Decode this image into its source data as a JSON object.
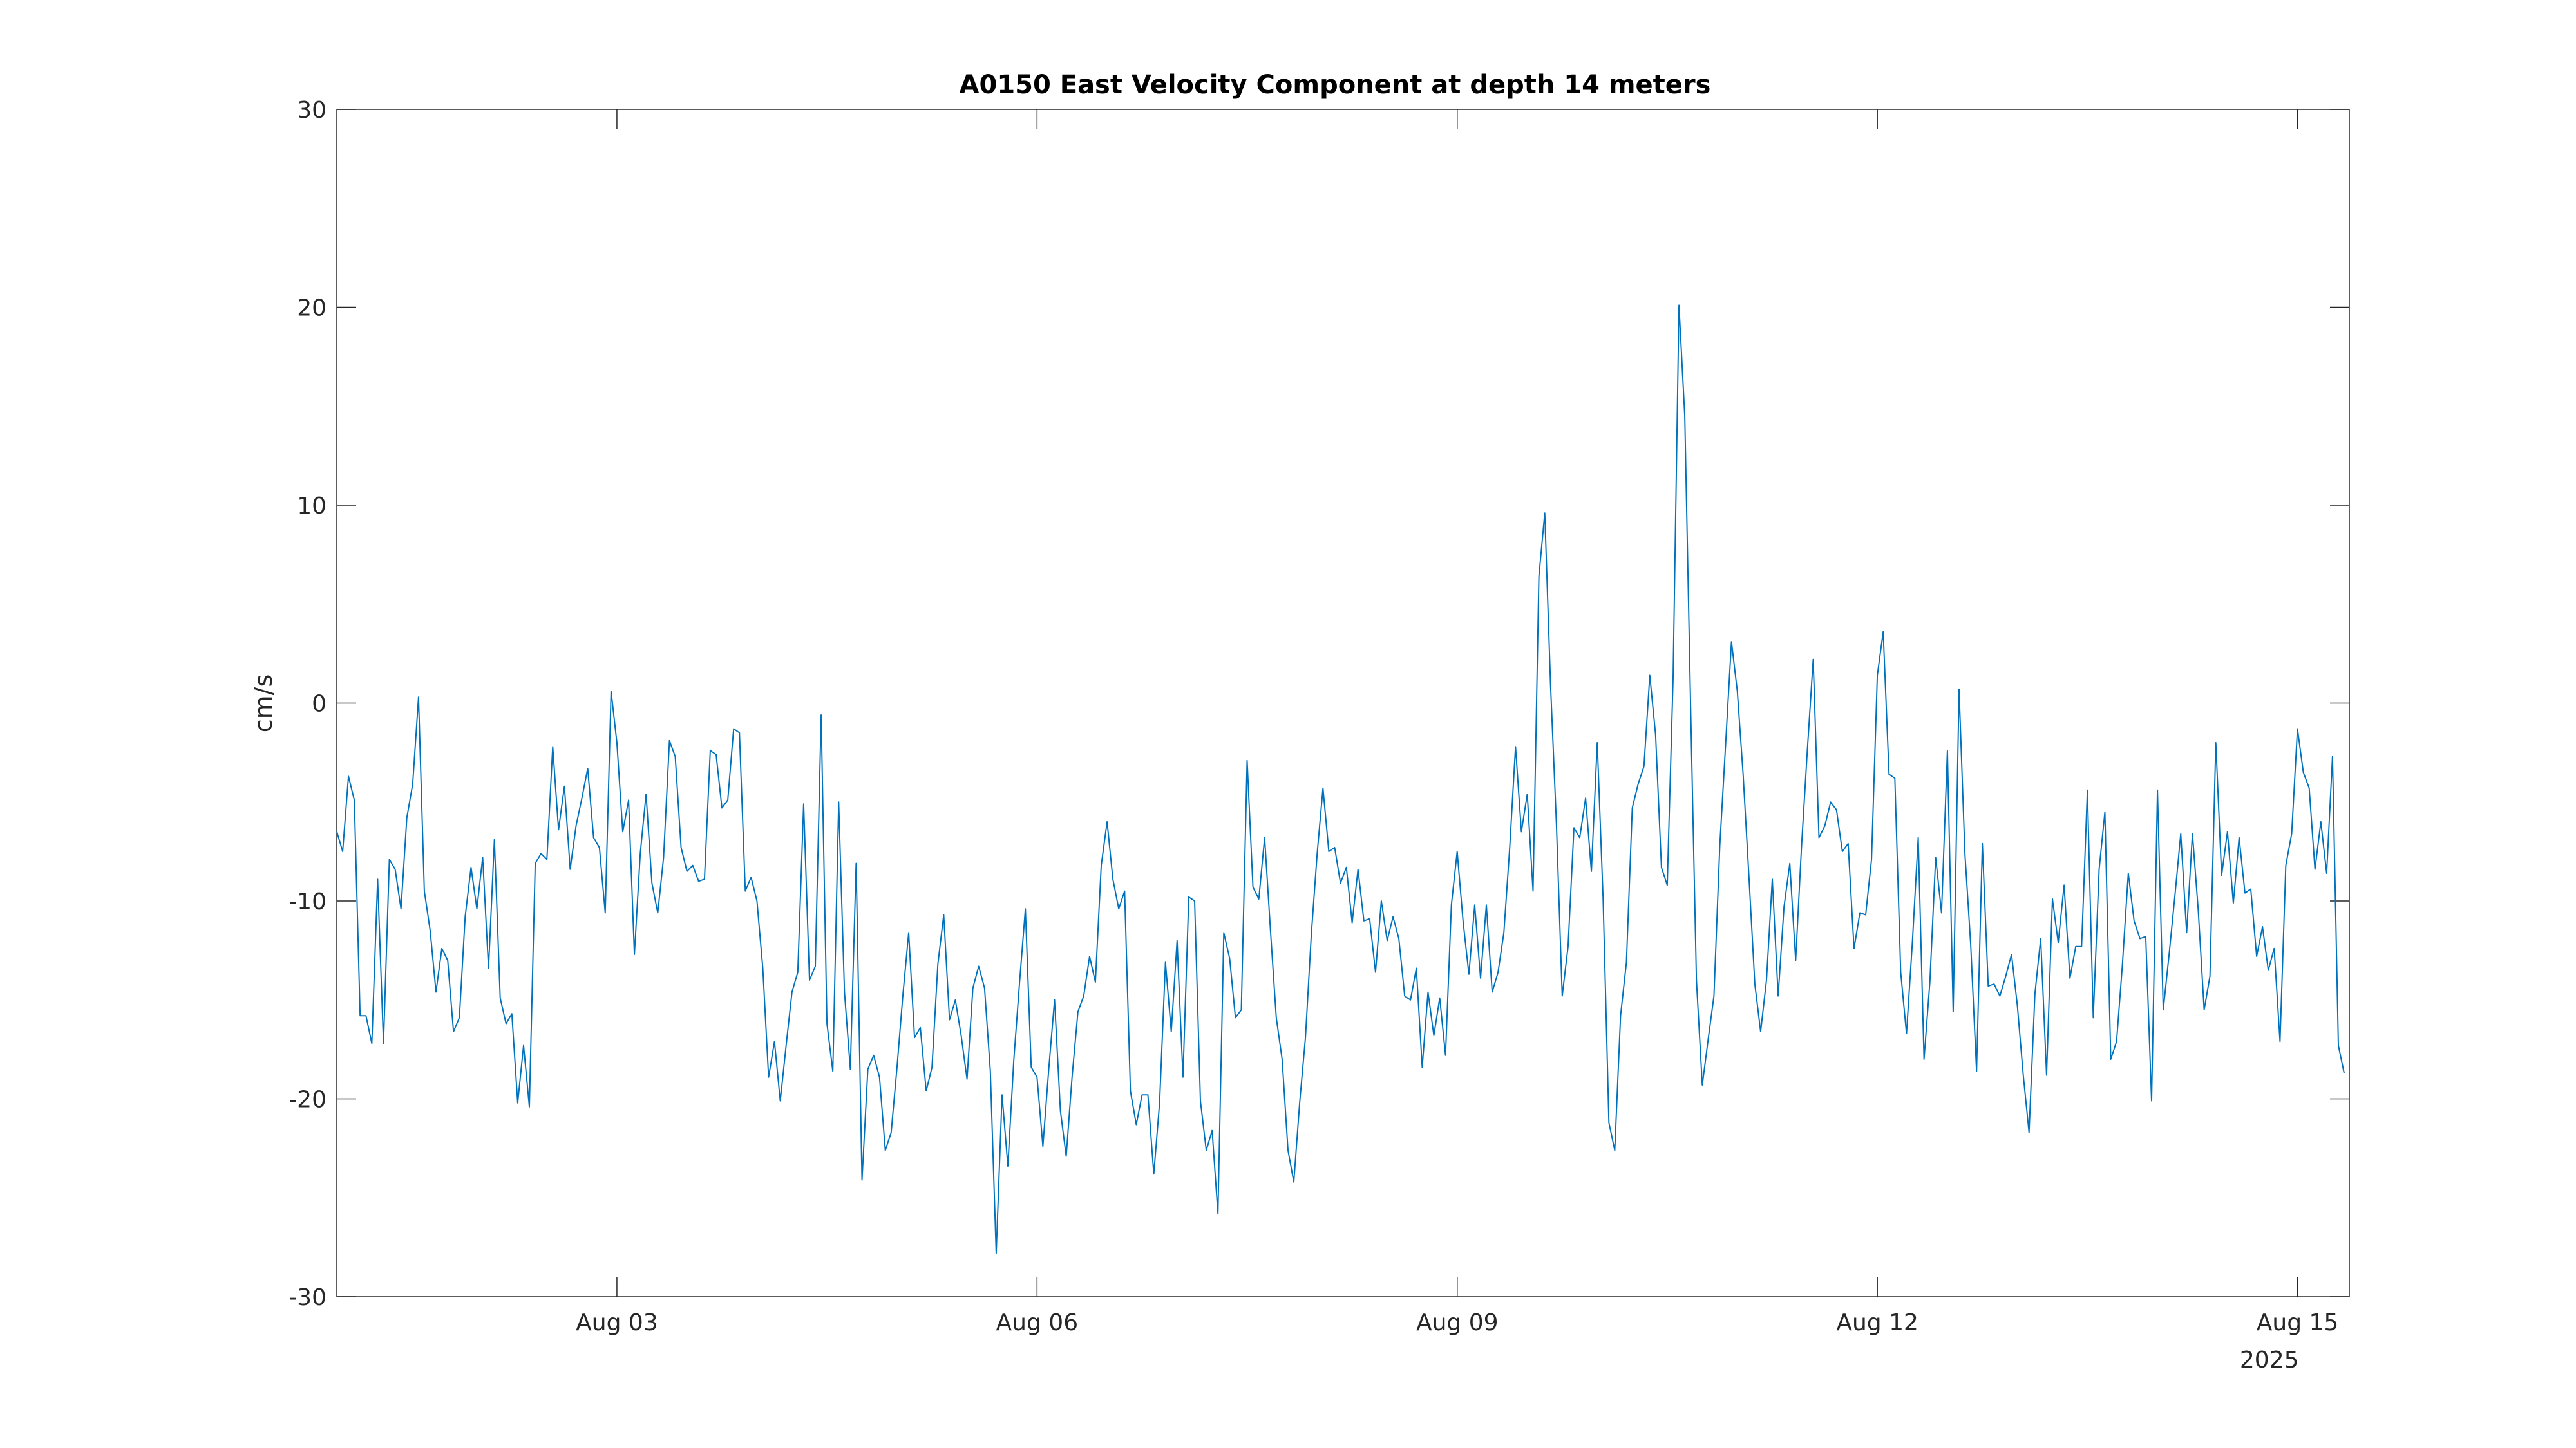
{
  "chart_data": {
    "type": "line",
    "title": "A0150 East Velocity Component at depth 14 meters",
    "xlabel": "",
    "ylabel": "cm/s",
    "ylim": [
      -30,
      30
    ],
    "yticks": [
      "30",
      "20",
      "10",
      "0",
      "-10",
      "-20",
      "-30"
    ],
    "xlim_days": [
      0,
      14.37
    ],
    "xticks": [
      {
        "label": "Aug 03",
        "day": 2.0
      },
      {
        "label": "Aug 06",
        "day": 5.0
      },
      {
        "label": "Aug 09",
        "day": 8.0
      },
      {
        "label": "Aug 12",
        "day": 11.0
      },
      {
        "label": "Aug 15",
        "day": 14.0
      }
    ],
    "x_secondary_label": "2025",
    "grid": false,
    "line_color": "#0072BD",
    "series": [
      {
        "interval_hours": 1,
        "values": [
          -6.5,
          -7.5,
          -3.7,
          -4.9,
          -15.8,
          -15.8,
          -17.2,
          -8.9,
          -17.2,
          -7.9,
          -8.4,
          -10.4,
          -5.8,
          -4.1,
          0.3,
          -9.5,
          -11.5,
          -14.6,
          -12.4,
          -13.0,
          -16.6,
          -15.9,
          -10.8,
          -8.3,
          -10.4,
          -7.8,
          -13.4,
          -6.9,
          -14.9,
          -16.2,
          -15.7,
          -20.2,
          -17.3,
          -20.4,
          -8.1,
          -7.6,
          -7.9,
          -2.2,
          -6.4,
          -4.2,
          -8.4,
          -6.2,
          -4.8,
          -3.3,
          -6.8,
          -7.3,
          -10.6,
          0.6,
          -2.0,
          -6.5,
          -4.9,
          -12.7,
          -7.6,
          -4.6,
          -9.1,
          -10.6,
          -7.8,
          -1.9,
          -2.7,
          -7.3,
          -8.5,
          -8.2,
          -9.0,
          -8.9,
          -2.4,
          -2.6,
          -5.3,
          -4.9,
          -1.3,
          -1.5,
          -9.5,
          -8.8,
          -10.0,
          -13.4,
          -18.9,
          -17.1,
          -20.1,
          -17.3,
          -14.6,
          -13.6,
          -5.1,
          -14.0,
          -13.3,
          -0.6,
          -16.2,
          -18.6,
          -5.0,
          -14.6,
          -18.5,
          -8.1,
          -24.1,
          -18.5,
          -17.8,
          -18.9,
          -22.6,
          -21.7,
          -18.4,
          -14.8,
          -11.6,
          -16.9,
          -16.4,
          -19.6,
          -18.4,
          -13.2,
          -10.7,
          -16.0,
          -15.0,
          -16.8,
          -19.0,
          -14.4,
          -13.3,
          -14.4,
          -18.6,
          -27.8,
          -19.8,
          -23.4,
          -18.1,
          -14.1,
          -10.4,
          -18.4,
          -18.9,
          -22.4,
          -18.5,
          -15.0,
          -20.6,
          -22.9,
          -18.9,
          -15.6,
          -14.8,
          -12.8,
          -14.1,
          -8.2,
          -6.0,
          -8.9,
          -10.4,
          -9.5,
          -19.6,
          -21.3,
          -19.8,
          -19.8,
          -23.8,
          -20.2,
          -13.1,
          -16.6,
          -12.0,
          -18.9,
          -9.8,
          -10.0,
          -20.1,
          -22.6,
          -21.6,
          -25.8,
          -11.6,
          -12.9,
          -15.9,
          -15.5,
          -2.9,
          -9.3,
          -9.9,
          -6.8,
          -11.5,
          -15.9,
          -18.0,
          -22.6,
          -24.2,
          -20.2,
          -16.9,
          -11.7,
          -7.6,
          -4.3,
          -7.5,
          -7.3,
          -9.1,
          -8.3,
          -11.1,
          -8.4,
          -11.0,
          -10.9,
          -13.6,
          -10.0,
          -12.0,
          -10.8,
          -11.9,
          -14.8,
          -15.0,
          -13.4,
          -18.4,
          -14.6,
          -16.8,
          -14.9,
          -17.8,
          -10.2,
          -7.5,
          -11.0,
          -13.7,
          -10.2,
          -13.9,
          -10.2,
          -14.6,
          -13.6,
          -11.6,
          -7.3,
          -2.2,
          -6.5,
          -4.6,
          -9.5,
          6.4,
          9.6,
          0.9,
          -6.1,
          -14.8,
          -12.3,
          -6.3,
          -6.8,
          -4.8,
          -8.5,
          -2.0,
          -9.9,
          -21.2,
          -22.6,
          -15.8,
          -13.1,
          -5.3,
          -4.1,
          -3.2,
          1.4,
          -1.6,
          -8.3,
          -9.2,
          1.3,
          20.1,
          14.5,
          -0.2,
          -14.0,
          -19.3,
          -17.0,
          -14.8,
          -7.2,
          -2.1,
          3.1,
          0.6,
          -3.6,
          -8.8,
          -14.2,
          -16.6,
          -14.0,
          -8.9,
          -14.8,
          -10.3,
          -8.1,
          -13.0,
          -7.3,
          -2.4,
          2.2,
          -6.8,
          -6.2,
          -5.0,
          -5.4,
          -7.5,
          -7.1,
          -12.4,
          -10.6,
          -10.7,
          -7.9,
          1.4,
          3.6,
          -3.6,
          -3.8,
          -13.6,
          -16.7,
          -12.1,
          -6.8,
          -18.0,
          -14.1,
          -7.8,
          -10.6,
          -2.4,
          -15.6,
          0.7,
          -7.6,
          -12.2,
          -18.6,
          -7.1,
          -14.3,
          -14.2,
          -14.8,
          -13.8,
          -12.7,
          -15.3,
          -18.8,
          -21.7,
          -14.7,
          -11.9,
          -18.8,
          -9.9,
          -12.1,
          -9.2,
          -13.9,
          -12.3,
          -12.3,
          -4.4,
          -15.9,
          -8.4,
          -5.5,
          -18.0,
          -17.1,
          -13.2,
          -8.6,
          -11.0,
          -11.9,
          -11.8,
          -20.1,
          -4.4,
          -15.5,
          -12.7,
          -9.7,
          -6.6,
          -11.6,
          -6.6,
          -10.5,
          -15.5,
          -13.8,
          -2.0,
          -8.7,
          -6.5,
          -10.1,
          -6.8,
          -9.6,
          -9.4,
          -12.8,
          -11.3,
          -13.5,
          -12.4,
          -17.1,
          -8.2,
          -6.6,
          -1.3,
          -3.5,
          -4.3,
          -8.4,
          -6.0,
          -8.6,
          -2.7,
          -17.3,
          -18.7
        ]
      }
    ]
  }
}
